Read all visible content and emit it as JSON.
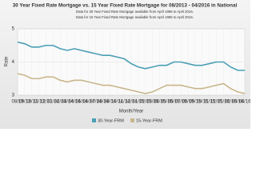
{
  "chart_data": {
    "type": "line",
    "title": "30 Year Fixed Rate Mortgage vs. 15 Year Fixed Rate Mortgage for 08/2013 - 04/2016 in National",
    "notes": [
      "Data for 30 Year Fixed Rate Mortgage available from April 1986 to April 2016.",
      "Data for 15 Year Fixed Rate Mortgage available from April 1986 to April 2016."
    ],
    "xlabel": "Month/Year",
    "ylabel": "Rate",
    "categories": [
      "08/13",
      "09/13",
      "10/13",
      "11/13",
      "12/13",
      "01/14",
      "02/14",
      "03/14",
      "04/14",
      "05/14",
      "06/14",
      "07/14",
      "08/14",
      "09/14",
      "10/14",
      "11/14",
      "12/14",
      "01/15",
      "02/15",
      "03/15",
      "04/15",
      "05/15",
      "06/15",
      "07/15",
      "08/15",
      "09/15",
      "10/15",
      "11/15",
      "12/15",
      "01/16",
      "02/16",
      "03/16",
      "04/16"
    ],
    "series": [
      {
        "name": "30-Year-FRM",
        "color": "#4a9fb5",
        "values": [
          4.6,
          4.55,
          4.45,
          4.45,
          4.5,
          4.5,
          4.4,
          4.35,
          4.4,
          4.35,
          4.3,
          4.25,
          4.2,
          4.2,
          4.15,
          4.1,
          3.95,
          3.85,
          3.8,
          3.85,
          3.9,
          3.9,
          4.0,
          4.0,
          3.95,
          3.9,
          3.9,
          3.95,
          4.0,
          4.0,
          3.85,
          3.75,
          3.75
        ]
      },
      {
        "name": "15-Year-FRM",
        "color": "#c9b68c",
        "values": [
          3.65,
          3.6,
          3.5,
          3.5,
          3.55,
          3.55,
          3.45,
          3.4,
          3.45,
          3.45,
          3.4,
          3.35,
          3.3,
          3.3,
          3.25,
          3.2,
          3.15,
          3.1,
          3.05,
          3.1,
          3.2,
          3.3,
          3.3,
          3.3,
          3.25,
          3.2,
          3.2,
          3.25,
          3.3,
          3.35,
          3.2,
          3.1,
          3.05
        ]
      }
    ],
    "ylim": [
      3,
      5
    ],
    "yticks": [
      3,
      4,
      5
    ],
    "grid": true,
    "legend": "bottom"
  }
}
